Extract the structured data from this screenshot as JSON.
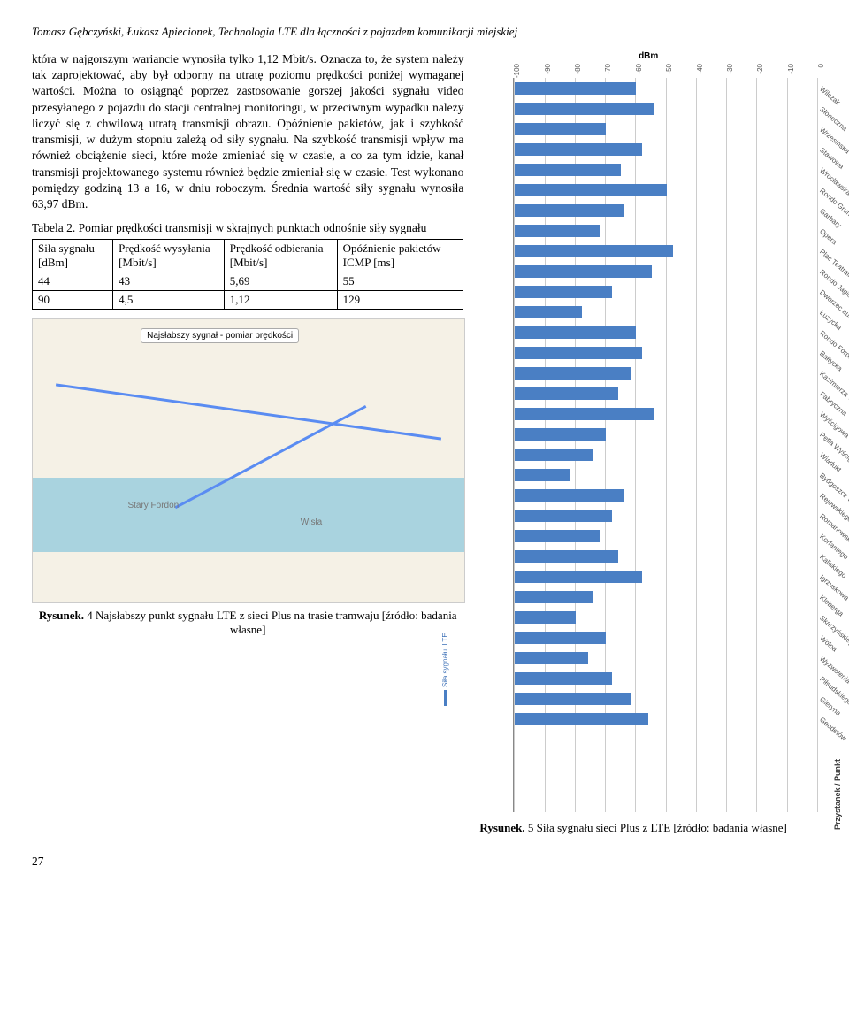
{
  "header": "Tomasz Gębczyński, Łukasz Apiecionek, Technologia LTE dla łączności z pojazdem komunikacji miejskiej",
  "bodyText": "która w najgorszym wariancie wynosiła tylko 1,12 Mbit/s. Oznacza to, że system należy tak zaprojektować, aby był odporny na utratę poziomu prędkości poniżej wymaganej wartości. Można to osiągnąć poprzez zastosowanie gorszej jakości sygnału video przesyłanego z pojazdu do stacji centralnej monitoringu, w przeciwnym wypadku należy liczyć się z chwilową utratą transmisji obrazu. Opóźnienie pakietów, jak i szybkość transmisji, w dużym stopniu zależą od siły sygnału. Na szybkość transmisji wpływ ma również obciążenie sieci, które może zmieniać się w czasie, a co za tym idzie, kanał transmisji projektowanego systemu również będzie zmieniał się w czasie. Test wykonano pomiędzy godziną 13 a 16, w dniu roboczym. Średnia wartość siły sygnału wynosiła 63,97 dBm.",
  "table": {
    "caption": "Tabela 2. Pomiar prędkości transmisji w skrajnych punktach odnośnie siły sygnału",
    "headers": [
      "Siła sygnału [dBm]",
      "Prędkość wysyłania [Mbit/s]",
      "Prędkość odbierania [Mbit/s]",
      "Opóźnienie pakietów ICMP [ms]"
    ],
    "rows": [
      [
        "44",
        "43",
        "5,69",
        "55"
      ],
      [
        "90",
        "4,5",
        "1,12",
        "129"
      ]
    ]
  },
  "figure4": {
    "callout": "Najsłabszy sygnał - pomiar prędkości",
    "captionPrefix": "Rysunek.",
    "caption": " 4 Najsłabszy punkt sygnału LTE z sieci Plus na trasie tramwaju [źródło: badania własne]"
  },
  "figure5": {
    "captionPrefix": "Rysunek.",
    "caption": " 5 Siła sygnału sieci Plus z LTE [źródło: badania własne]"
  },
  "chart": {
    "title": "dBm",
    "xTicks": [
      -100,
      -90,
      -80,
      -70,
      -60,
      -50,
      -40,
      -30,
      -20,
      -10,
      0
    ],
    "xlim": [
      -100,
      0
    ],
    "barColor": "#4a7fc4",
    "gridColor": "#cccccc",
    "labelFontSize": 8,
    "seriesLabel": "Siła sygnału. LTE",
    "rightAxisLabel": "Przystanek / Punkt",
    "labels": [
      "Wilczak",
      "Słoneczna",
      "Wrzesińska",
      "Stawowa",
      "Wrocławska",
      "Rondo Grunwaldzkie",
      "Garbary",
      "Opera",
      "Plac Teatralny",
      "Rondo Jagiellonów",
      "Dworzec autobusowy",
      "Łużycka",
      "Rondo Fordońskie",
      "Bałtycka",
      "Kazimierza Wielkiego",
      "Fabryczna",
      "Wyścigowa",
      "Pętla Wyścigowa",
      "Wiadukt",
      "Bydgoszcz Wschód",
      "Rejewskiego",
      "Romanowskiej",
      "Korfantego",
      "Kaliskiego",
      "Igrzyskowa",
      "Kleberga",
      "Skarzyńskiego",
      "Wolna",
      "Wyzwolenia",
      "Piłsudskiego",
      "Gieryna",
      "Geodetów"
    ],
    "values": [
      -60,
      -54,
      -70,
      -58,
      -65,
      -50,
      -64,
      -72,
      -48,
      -55,
      -68,
      -78,
      -60,
      -58,
      -62,
      -66,
      -54,
      -70,
      -74,
      -82,
      -64,
      -68,
      -72,
      -66,
      -58,
      -74,
      -80,
      -70,
      -76,
      -68,
      -62,
      -56
    ]
  },
  "pageNumber": "27"
}
